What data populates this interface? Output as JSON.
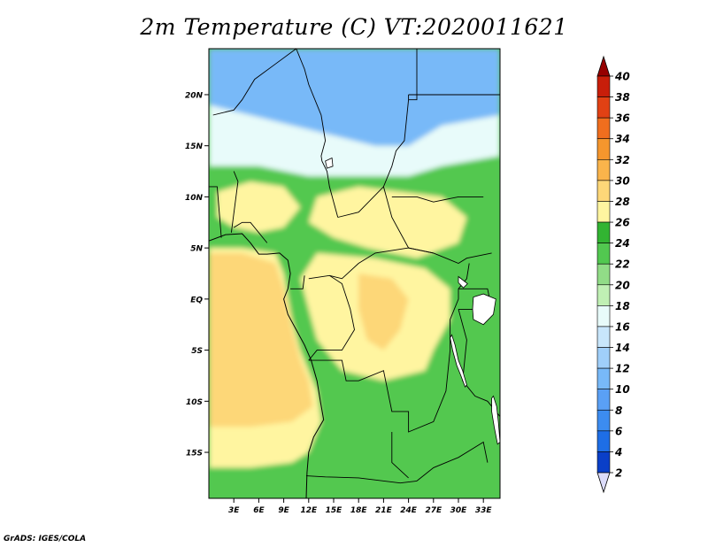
{
  "title": "2m Temperature (C) VT:2020011621",
  "credit": "GrADS: IGES/COLA",
  "map": {
    "lon_range": [
      0,
      35
    ],
    "lat_range": [
      -19.5,
      24.5
    ],
    "lon_ticks": [
      {
        "value": 3,
        "label": "3E"
      },
      {
        "value": 6,
        "label": "6E"
      },
      {
        "value": 9,
        "label": "9E"
      },
      {
        "value": 12,
        "label": "12E"
      },
      {
        "value": 15,
        "label": "15E"
      },
      {
        "value": 18,
        "label": "18E"
      },
      {
        "value": 21,
        "label": "21E"
      },
      {
        "value": 24,
        "label": "24E"
      },
      {
        "value": 27,
        "label": "27E"
      },
      {
        "value": 30,
        "label": "30E"
      },
      {
        "value": 33,
        "label": "33E"
      }
    ],
    "lat_ticks": [
      {
        "value": 20,
        "label": "20N"
      },
      {
        "value": 15,
        "label": "15N"
      },
      {
        "value": 10,
        "label": "10N"
      },
      {
        "value": 5,
        "label": "5N"
      },
      {
        "value": 0,
        "label": "EQ"
      },
      {
        "value": -5,
        "label": "5S"
      },
      {
        "value": -10,
        "label": "10S"
      },
      {
        "value": -15,
        "label": "15S"
      }
    ],
    "regions": [
      {
        "name": "cold-north",
        "temp": 10,
        "pts": [
          [
            0,
            24.5
          ],
          [
            35,
            24.5
          ],
          [
            35,
            18
          ],
          [
            28,
            17
          ],
          [
            24,
            15
          ],
          [
            20,
            15
          ],
          [
            15,
            16
          ],
          [
            10,
            17
          ],
          [
            5,
            18
          ],
          [
            0,
            19
          ]
        ]
      },
      {
        "name": "sahel-band",
        "temp": 17,
        "pts": [
          [
            0,
            19
          ],
          [
            5,
            18
          ],
          [
            10,
            17
          ],
          [
            15,
            16
          ],
          [
            20,
            15
          ],
          [
            24,
            15
          ],
          [
            28,
            17
          ],
          [
            35,
            18
          ],
          [
            35,
            14
          ],
          [
            28,
            13
          ],
          [
            24,
            12
          ],
          [
            18,
            12
          ],
          [
            12,
            12
          ],
          [
            6,
            13
          ],
          [
            0,
            13
          ]
        ]
      },
      {
        "name": "green-belt",
        "temp": 22,
        "pts": [
          [
            0,
            13
          ],
          [
            6,
            13
          ],
          [
            12,
            12
          ],
          [
            18,
            12
          ],
          [
            24,
            12
          ],
          [
            28,
            13
          ],
          [
            35,
            14
          ],
          [
            35,
            -19.5
          ],
          [
            0,
            -19.5
          ],
          [
            0,
            5
          ]
        ]
      },
      {
        "name": "warm-nw",
        "temp": 27,
        "pts": [
          [
            1,
            10.5
          ],
          [
            5,
            11.5
          ],
          [
            9,
            11
          ],
          [
            11,
            9
          ],
          [
            9,
            7
          ],
          [
            6,
            6.5
          ],
          [
            3,
            7
          ],
          [
            1,
            8
          ]
        ]
      },
      {
        "name": "warm-central-north",
        "temp": 27,
        "pts": [
          [
            13,
            10
          ],
          [
            18,
            11
          ],
          [
            23,
            10.5
          ],
          [
            28,
            10
          ],
          [
            31,
            8
          ],
          [
            30,
            5.5
          ],
          [
            25,
            4
          ],
          [
            19,
            5
          ],
          [
            15,
            6
          ],
          [
            12,
            7.5
          ]
        ]
      },
      {
        "name": "warm-congo",
        "temp": 27,
        "pts": [
          [
            13,
            4.5
          ],
          [
            20,
            4
          ],
          [
            26,
            3
          ],
          [
            29,
            1
          ],
          [
            29,
            -2
          ],
          [
            27,
            -5
          ],
          [
            26,
            -7
          ],
          [
            21,
            -8
          ],
          [
            16,
            -7
          ],
          [
            13,
            -4
          ],
          [
            12,
            -1
          ],
          [
            11,
            2
          ]
        ]
      },
      {
        "name": "hot-congo",
        "temp": 29,
        "pts": [
          [
            18,
            2.5
          ],
          [
            22,
            2
          ],
          [
            24,
            0
          ],
          [
            23,
            -3
          ],
          [
            21,
            -5
          ],
          [
            19,
            -4
          ],
          [
            18,
            -1
          ]
        ]
      },
      {
        "name": "ocean-warm",
        "temp": 27,
        "pts": [
          [
            0,
            5
          ],
          [
            4,
            5
          ],
          [
            8,
            4.5
          ],
          [
            9,
            2.5
          ],
          [
            10,
            -2
          ],
          [
            11,
            -5
          ],
          [
            12,
            -7
          ],
          [
            13,
            -9
          ],
          [
            13.5,
            -12
          ],
          [
            12,
            -15
          ],
          [
            10,
            -16
          ],
          [
            5,
            -16.5
          ],
          [
            0,
            -16.5
          ]
        ]
      },
      {
        "name": "ocean-hot",
        "temp": 29,
        "pts": [
          [
            0,
            4.5
          ],
          [
            4,
            4.5
          ],
          [
            8,
            3.5
          ],
          [
            9,
            1
          ],
          [
            10,
            -3
          ],
          [
            11,
            -6
          ],
          [
            12,
            -8
          ],
          [
            12.5,
            -10.5
          ],
          [
            10,
            -12
          ],
          [
            5,
            -12.5
          ],
          [
            0,
            -12.5
          ]
        ]
      }
    ],
    "boundaries": [
      [
        [
          10.5,
          24.5
        ],
        [
          8,
          23
        ],
        [
          5.5,
          21.5
        ],
        [
          4,
          19.5
        ],
        [
          3,
          18.5
        ],
        [
          0.5,
          18
        ]
      ],
      [
        [
          10.5,
          24.5
        ],
        [
          11.5,
          22.5
        ],
        [
          12,
          21
        ],
        [
          13.5,
          18
        ],
        [
          14,
          15.5
        ],
        [
          13.5,
          14
        ],
        [
          13.6,
          13.5
        ]
      ],
      [
        [
          13.6,
          13.5
        ],
        [
          14.2,
          12.5
        ],
        [
          14.5,
          11
        ],
        [
          15,
          9.5
        ],
        [
          15.5,
          8
        ]
      ],
      [
        [
          15.5,
          8
        ],
        [
          18,
          8.5
        ],
        [
          21,
          11
        ],
        [
          22,
          13
        ],
        [
          22.5,
          14.5
        ],
        [
          23.5,
          15.5
        ],
        [
          24,
          19.5
        ],
        [
          24,
          20
        ]
      ],
      [
        [
          24,
          19.5
        ],
        [
          25,
          19.5
        ],
        [
          25,
          24.5
        ]
      ],
      [
        [
          24,
          20
        ],
        [
          35,
          20
        ]
      ],
      [
        [
          22,
          10
        ],
        [
          25,
          10
        ],
        [
          27,
          9.5
        ],
        [
          30,
          10
        ],
        [
          33,
          10
        ]
      ],
      [
        [
          21,
          11
        ],
        [
          22,
          8
        ],
        [
          24,
          5
        ],
        [
          27,
          4.5
        ],
        [
          30,
          3.5
        ],
        [
          31,
          4
        ],
        [
          34,
          4.5
        ]
      ],
      [
        [
          14.5,
          2.3
        ],
        [
          16,
          2
        ],
        [
          18,
          3.5
        ],
        [
          20,
          4.5
        ],
        [
          24,
          5
        ],
        [
          27,
          4.5
        ]
      ],
      [
        [
          12,
          2
        ],
        [
          14.5,
          2.3
        ],
        [
          16,
          1.5
        ],
        [
          17,
          -1
        ],
        [
          17.5,
          -3
        ],
        [
          16,
          -5
        ],
        [
          13,
          -5
        ],
        [
          12,
          -6
        ]
      ],
      [
        [
          11.5,
          2.3
        ],
        [
          11.3,
          1
        ],
        [
          9.8,
          1
        ]
      ],
      [
        [
          12,
          -6
        ],
        [
          16,
          -6
        ],
        [
          16.5,
          -8
        ],
        [
          18,
          -8
        ],
        [
          21,
          -7
        ],
        [
          22,
          -11
        ],
        [
          24,
          -11
        ],
        [
          24,
          -13
        ],
        [
          27,
          -12
        ],
        [
          28.5,
          -9
        ],
        [
          29,
          -5
        ],
        [
          29,
          -2
        ],
        [
          30,
          0
        ],
        [
          30,
          1
        ],
        [
          31,
          2
        ],
        [
          31.3,
          3.5
        ]
      ],
      [
        [
          30,
          1
        ],
        [
          33.5,
          1
        ],
        [
          34,
          -1
        ],
        [
          32,
          -1
        ],
        [
          30,
          -1
        ]
      ],
      [
        [
          30,
          -1
        ],
        [
          31,
          -4
        ],
        [
          30.5,
          -8
        ],
        [
          32,
          -9.5
        ],
        [
          33.5,
          -10
        ],
        [
          35,
          -11.5
        ]
      ],
      [
        [
          11.7,
          -17.3
        ],
        [
          14,
          -17.4
        ],
        [
          18,
          -17.5
        ],
        [
          23,
          -18
        ],
        [
          25,
          -17.8
        ]
      ],
      [
        [
          22,
          -13
        ],
        [
          22,
          -16
        ],
        [
          24,
          -17.5
        ]
      ],
      [
        [
          25,
          -17.8
        ],
        [
          27,
          -16.5
        ],
        [
          30,
          -15.5
        ],
        [
          33,
          -14
        ],
        [
          33.5,
          -16
        ]
      ],
      [
        [
          3,
          7
        ],
        [
          4,
          7.5
        ],
        [
          5,
          7.5
        ],
        [
          7,
          5.5
        ]
      ],
      [
        [
          2.7,
          6.5
        ],
        [
          3.5,
          11.5
        ],
        [
          3,
          12.5
        ]
      ],
      [
        [
          1.5,
          6
        ],
        [
          1,
          11
        ],
        [
          0,
          11
        ]
      ]
    ],
    "coastlines": [
      [
        [
          0,
          5.7
        ],
        [
          2,
          6.3
        ],
        [
          4,
          6.4
        ],
        [
          5,
          5.5
        ],
        [
          6,
          4.4
        ],
        [
          7,
          4.4
        ],
        [
          8.5,
          4.5
        ],
        [
          9.5,
          3.8
        ],
        [
          9.8,
          2.5
        ],
        [
          9.5,
          1
        ],
        [
          9,
          0
        ],
        [
          9.5,
          -1.5
        ],
        [
          10.5,
          -3
        ],
        [
          11.5,
          -4.5
        ],
        [
          12.3,
          -6
        ],
        [
          13,
          -8
        ],
        [
          13.4,
          -10
        ],
        [
          13.8,
          -11.8
        ],
        [
          12.6,
          -13.5
        ],
        [
          12,
          -15
        ],
        [
          11.8,
          -17
        ],
        [
          11.7,
          -19.5
        ]
      ]
    ],
    "lakes": [
      [
        [
          29.2,
          -3.5
        ],
        [
          29.6,
          -4.5
        ],
        [
          30,
          -6
        ],
        [
          30.5,
          -7
        ],
        [
          31,
          -8.4
        ],
        [
          30.8,
          -8.6
        ],
        [
          30.3,
          -7.5
        ],
        [
          29.8,
          -6.5
        ],
        [
          29.3,
          -5
        ],
        [
          29,
          -3.8
        ]
      ],
      [
        [
          34.2,
          -9.5
        ],
        [
          34.6,
          -10.5
        ],
        [
          34.8,
          -12
        ],
        [
          35,
          -14
        ],
        [
          34.7,
          -14.2
        ],
        [
          34.3,
          -12.5
        ],
        [
          34,
          -11
        ],
        [
          34,
          -9.7
        ]
      ],
      [
        [
          31.8,
          0.2
        ],
        [
          33,
          0.5
        ],
        [
          34.5,
          0
        ],
        [
          34.2,
          -1.5
        ],
        [
          33,
          -2.5
        ],
        [
          31.8,
          -2
        ],
        [
          31.7,
          -1
        ]
      ],
      [
        [
          30,
          2.2
        ],
        [
          31.1,
          1.5
        ],
        [
          30.6,
          1.1
        ],
        [
          30,
          1.6
        ]
      ],
      [
        [
          14,
          13.5
        ],
        [
          14.8,
          13.8
        ],
        [
          14.9,
          13
        ],
        [
          14.2,
          12.8
        ]
      ]
    ]
  },
  "colorbar": {
    "levels": [
      2,
      4,
      6,
      8,
      10,
      12,
      14,
      16,
      18,
      20,
      22,
      24,
      26,
      28,
      30,
      32,
      34,
      36,
      38,
      40
    ],
    "colors": [
      "#180090",
      "#0a3fc8",
      "#1e6ee6",
      "#3c8cf0",
      "#5aa0f5",
      "#78b9f8",
      "#a0cffa",
      "#c8e6fb",
      "#e8fbfa",
      "#c0f0b4",
      "#91dc87",
      "#52c850",
      "#32b432",
      "#fff5a0",
      "#fdd778",
      "#fab44b",
      "#f5962d",
      "#f06e1e",
      "#e14114",
      "#c81e0a",
      "#a00000"
    ],
    "under_color": "#dcdcfa",
    "over_color": "#960000"
  }
}
